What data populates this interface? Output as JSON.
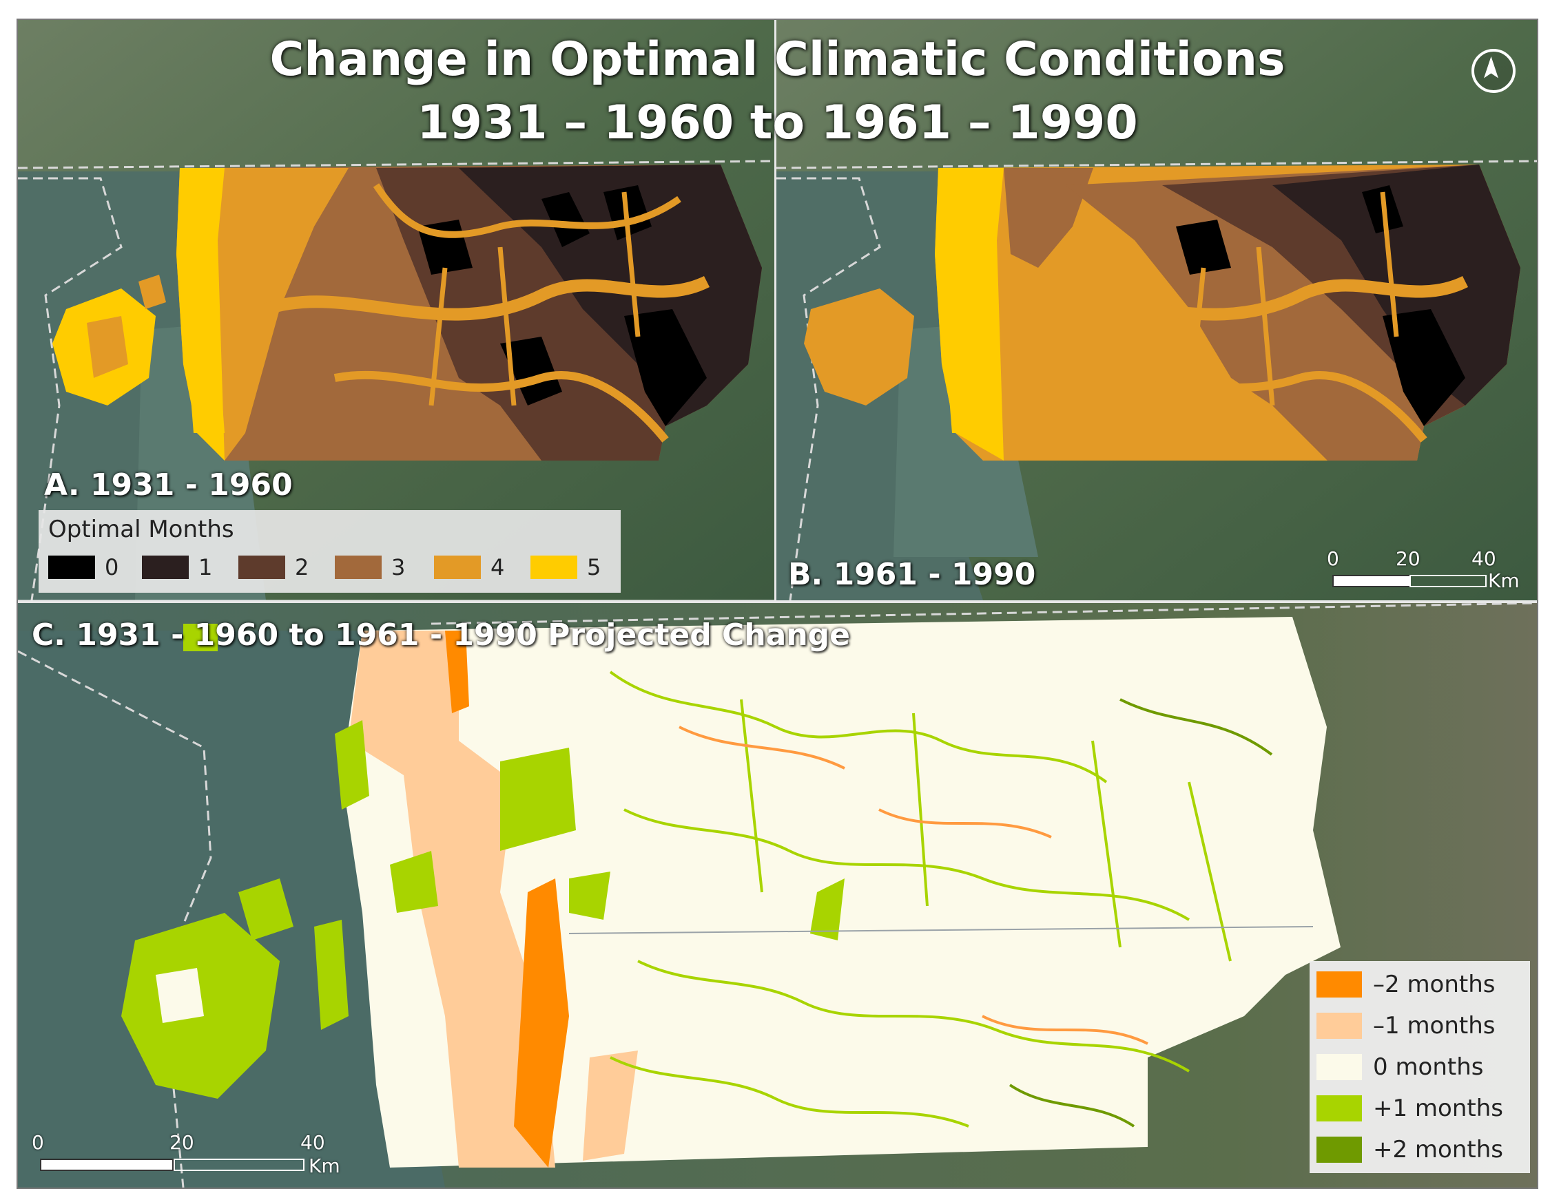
{
  "title_line1": "Change in Optimal Climatic Conditions",
  "title_line2": "1931 – 1960 to 1961 – 1990",
  "panels": {
    "a_label": "A. 1931 - 1960",
    "b_label": "B. 1961 - 1990",
    "c_label": "C. 1931 - 1960 to 1961 - 1990 Projected Change"
  },
  "legend_months": {
    "title": "Optimal Months",
    "items": [
      {
        "label": "0",
        "color": "#000000"
      },
      {
        "label": "1",
        "color": "#2b1f1f"
      },
      {
        "label": "2",
        "color": "#5e3b2c"
      },
      {
        "label": "3",
        "color": "#a2693b"
      },
      {
        "label": "4",
        "color": "#e39a26"
      },
      {
        "label": "5",
        "color": "#ffcc00"
      }
    ]
  },
  "legend_change": {
    "items": [
      {
        "label": "–2 months",
        "color": "#ff8a00"
      },
      {
        "label": "–1 months",
        "color": "#ffcc99"
      },
      {
        "label": "0 months",
        "color": "#fcfaea"
      },
      {
        "label": "+1 months",
        "color": "#a8d400"
      },
      {
        "label": "+2 months",
        "color": "#6f9a00"
      }
    ]
  },
  "scale_ab": {
    "ticks": [
      "0",
      "20",
      "40"
    ],
    "unit": "Km"
  },
  "scale_c": {
    "ticks": [
      "0",
      "20",
      "40"
    ],
    "unit": "Km"
  },
  "north_arrow": "north-arrow-icon"
}
